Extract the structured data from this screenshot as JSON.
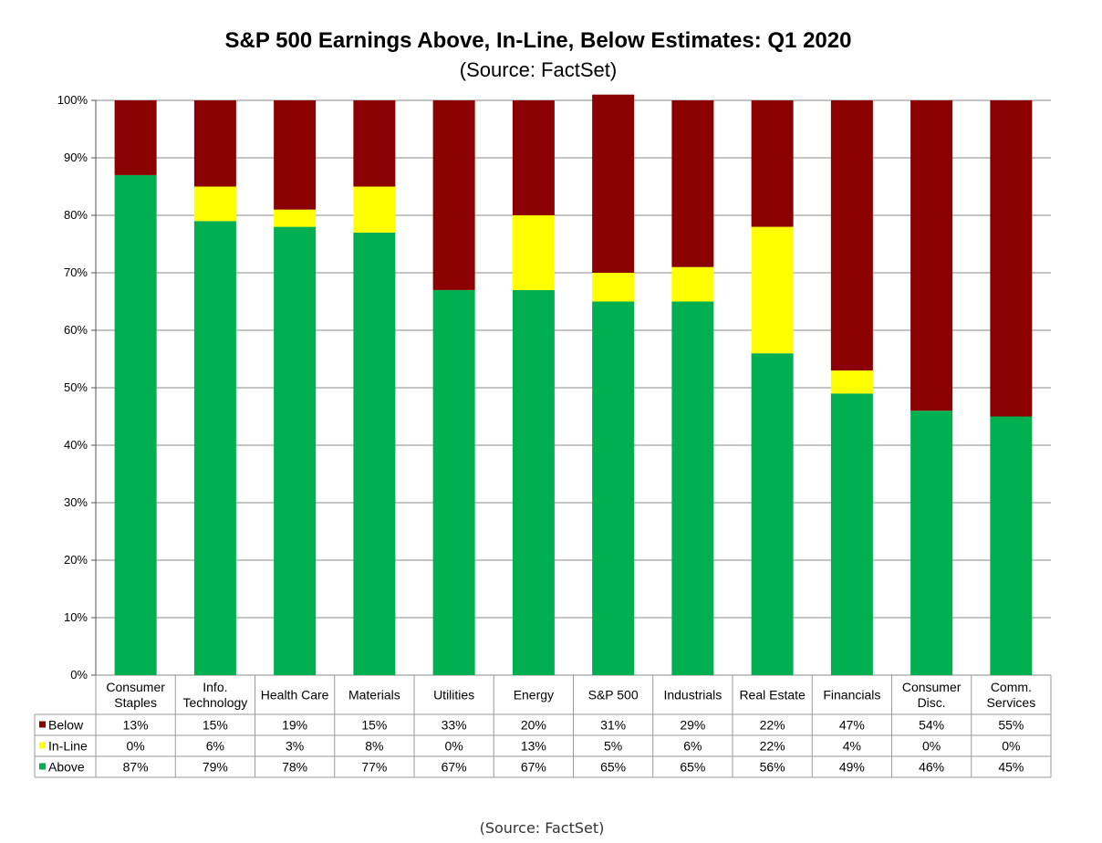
{
  "chart_data": {
    "type": "bar",
    "stacked": true,
    "title": "S&P 500 Earnings Above, In-Line, Below Estimates: Q1 2020",
    "subtitle": "(Source: FactSet)",
    "categories": [
      [
        "Consumer",
        "Staples"
      ],
      [
        "Info.",
        "Technology"
      ],
      [
        "Health Care"
      ],
      [
        "Materials"
      ],
      [
        "Utilities"
      ],
      [
        "Energy"
      ],
      [
        "S&P 500"
      ],
      [
        "Industrials"
      ],
      [
        "Real Estate"
      ],
      [
        "Financials"
      ],
      [
        "Consumer",
        "Disc."
      ],
      [
        "Comm.",
        "Services"
      ]
    ],
    "series": [
      {
        "name": "Below",
        "color": "#8B0000",
        "values": [
          13,
          15,
          19,
          15,
          33,
          20,
          31,
          29,
          22,
          47,
          54,
          55
        ]
      },
      {
        "name": "In-Line",
        "color": "#FFFF00",
        "values": [
          0,
          6,
          3,
          8,
          0,
          13,
          5,
          6,
          22,
          4,
          0,
          0
        ]
      },
      {
        "name": "Above",
        "color": "#00B050",
        "values": [
          87,
          79,
          78,
          77,
          67,
          67,
          65,
          65,
          56,
          49,
          46,
          45
        ]
      }
    ],
    "stack_order_bottom_to_top": [
      "Above",
      "In-Line",
      "Below"
    ],
    "ylim": [
      0,
      100
    ],
    "yticks": [
      "0%",
      "10%",
      "20%",
      "30%",
      "40%",
      "50%",
      "60%",
      "70%",
      "80%",
      "90%",
      "100%"
    ],
    "grid": true,
    "legend": "data-table-below-chart"
  },
  "caption": "(Source:  FactSet)"
}
